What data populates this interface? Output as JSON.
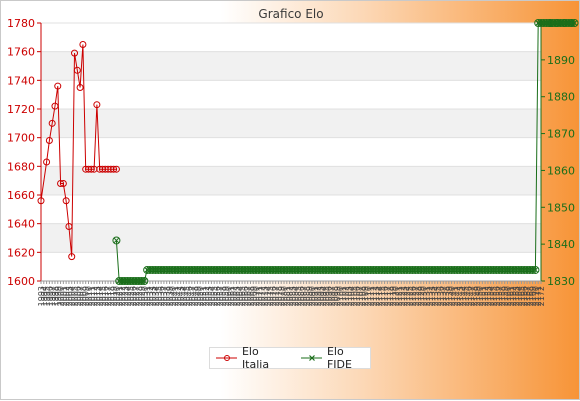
{
  "chart_data": {
    "type": "line",
    "title": "Grafico Elo",
    "xlabel": "",
    "ylabel": "",
    "x_tick_labels": [
      "1993",
      "1994",
      "1995",
      "1996",
      "1997",
      "1998",
      "1999",
      "2000",
      "2001",
      "2002",
      "2003",
      "2004",
      "2005",
      "2006",
      "2007",
      "2008",
      "2009",
      "2010",
      "2011",
      "2012",
      "2013",
      "2014",
      "2015",
      "2016",
      "2017",
      "2018",
      "2019",
      "2020",
      "2021",
      "2022",
      "2023",
      "2024",
      "2025",
      "2026",
      "2027",
      "2028",
      "2029",
      "2030",
      "2031",
      "2032",
      "2033",
      "2034",
      "2035",
      "2036",
      "2037",
      "2038",
      "2039",
      "2040",
      "2041",
      "2042",
      "2043",
      "2044",
      "2045",
      "2046",
      "2047",
      "2048",
      "2049",
      "2050",
      "2051",
      "2052",
      "2053",
      "2054",
      "2055",
      "2056",
      "2057",
      "2058",
      "2059",
      "2060",
      "2061",
      "2062",
      "2063",
      "2064",
      "2065",
      "2066",
      "2067",
      "2068",
      "2069",
      "2070",
      "2071",
      "2072",
      "2073",
      "2074",
      "2075",
      "2076",
      "2077",
      "2078",
      "2079",
      "2080",
      "2081",
      "2082",
      "2083",
      "2084",
      "2085",
      "2086",
      "2087",
      "2088",
      "2089",
      "2090",
      "2091",
      "2092",
      "2093",
      "2094",
      "2095",
      "2096",
      "2097",
      "2098",
      "2099",
      "2100",
      "2101",
      "2102",
      "2103",
      "2104",
      "2105",
      "2106",
      "2107",
      "2108",
      "2109",
      "2110",
      "2111",
      "2112",
      "2113",
      "2114",
      "2115",
      "2116",
      "2117",
      "2118",
      "2119",
      "2120",
      "2121",
      "2122",
      "2123",
      "2124",
      "2125",
      "2126",
      "2127",
      "2128",
      "2129",
      "2130",
      "2131",
      "2132",
      "2133",
      "2134",
      "2135",
      "2136",
      "2137",
      "2138",
      "2139",
      "2140",
      "2141",
      "2142",
      "2143",
      "2144",
      "2145",
      "2146",
      "2147",
      "2148",
      "2149",
      "2150",
      "2151",
      "2152",
      "2153",
      "2154",
      "2155",
      "2156",
      "2157",
      "2158",
      "2159",
      "2160",
      "2161",
      "2162",
      "2163",
      "2164",
      "2165",
      "2166",
      "2167",
      "2168",
      "2169",
      "2170",
      "2171",
      "2172"
    ],
    "left_axis": {
      "ylim": [
        1600,
        1780
      ],
      "ticks": [
        1600,
        1620,
        1640,
        1660,
        1680,
        1700,
        1720,
        1740,
        1760,
        1780
      ],
      "color": "#cc0000"
    },
    "right_axis": {
      "ylim": [
        1830,
        1900
      ],
      "ticks": [
        1830,
        1840,
        1850,
        1860,
        1870,
        1880,
        1890,
        1900
      ],
      "color": "#1a6e1a"
    },
    "grid": true,
    "legend_position": "bottom-center",
    "series": [
      {
        "name": "Elo Italia",
        "axis": "left",
        "color": "#cc0000",
        "x": [
          0,
          2,
          3,
          4,
          5,
          6,
          7,
          8,
          9,
          10,
          11,
          12,
          13,
          14,
          15,
          16,
          17,
          18,
          19,
          20,
          21,
          22,
          23,
          24,
          25,
          26,
          27
        ],
        "values": [
          1656,
          1683,
          1698,
          1710,
          1722,
          1736,
          1668,
          1668,
          1656,
          1638,
          1617,
          1759,
          1747,
          1735,
          1765,
          1678,
          1678,
          1678,
          1678,
          1723,
          1678,
          1678,
          1678,
          1678,
          1678,
          1678,
          1678
        ]
      },
      {
        "name": "Elo FIDE",
        "axis": "right",
        "color": "#1a6e1a",
        "x_start": 27,
        "values": [
          1841,
          1830,
          1830,
          1830,
          1830,
          1830,
          1830,
          1830,
          1830,
          1830,
          1830,
          1833,
          1833,
          1833,
          1833,
          1833,
          1833,
          1833,
          1833,
          1833,
          1833,
          1833,
          1833,
          1833,
          1833,
          1833,
          1833,
          1833,
          1833,
          1833,
          1833,
          1833,
          1833,
          1833,
          1833,
          1833,
          1833,
          1833,
          1833,
          1833,
          1833,
          1833,
          1833,
          1833,
          1833,
          1833,
          1833,
          1833,
          1833,
          1833,
          1833,
          1833,
          1833,
          1833,
          1833,
          1833,
          1833,
          1833,
          1833,
          1833,
          1833,
          1833,
          1833,
          1833,
          1833,
          1833,
          1833,
          1833,
          1833,
          1833,
          1833,
          1833,
          1833,
          1833,
          1833,
          1833,
          1833,
          1833,
          1833,
          1833,
          1833,
          1833,
          1833,
          1833,
          1833,
          1833,
          1833,
          1833,
          1833,
          1833,
          1833,
          1833,
          1833,
          1833,
          1833,
          1833,
          1833,
          1833,
          1833,
          1833,
          1833,
          1833,
          1833,
          1833,
          1833,
          1833,
          1833,
          1833,
          1833,
          1833,
          1833,
          1833,
          1833,
          1833,
          1833,
          1833,
          1833,
          1833,
          1833,
          1833,
          1833,
          1833,
          1833,
          1833,
          1833,
          1833,
          1833,
          1833,
          1833,
          1833,
          1833,
          1833,
          1833,
          1833,
          1833,
          1833,
          1833,
          1833,
          1833,
          1833,
          1833,
          1833,
          1833,
          1833,
          1833,
          1833,
          1833,
          1833,
          1833,
          1833,
          1833,
          1900,
          1900,
          1900,
          1900,
          1900,
          1900,
          1900,
          1900,
          1900,
          1900,
          1900,
          1900,
          1900,
          1900
        ]
      }
    ]
  }
}
